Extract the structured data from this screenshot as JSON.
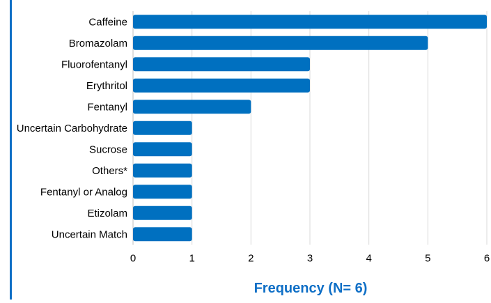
{
  "chart_data": {
    "type": "bar",
    "orientation": "horizontal",
    "categories": [
      "Caffeine",
      "Bromazolam",
      "Fluorofentanyl",
      "Erythritol",
      "Fentanyl",
      "Uncertain Carbohydrate",
      "Sucrose",
      "Others*",
      "Fentanyl or Analog",
      "Etizolam",
      "Uncertain Match"
    ],
    "values": [
      6,
      5,
      3,
      3,
      2,
      1,
      1,
      1,
      1,
      1,
      1
    ],
    "xlabel": "Frequency (N= 6)",
    "ylabel": "",
    "xlim": [
      0,
      6
    ],
    "xticks": [
      "0",
      "1",
      "2",
      "3",
      "4",
      "5",
      "6"
    ],
    "grid": "vertical",
    "legend": "none",
    "colors": {
      "bar": "#0070c0",
      "grid": "#d9d9d9",
      "axis_title": "#0f6fc6",
      "tick_text": "#000000",
      "accent_rule": "#0f6fc6"
    }
  }
}
